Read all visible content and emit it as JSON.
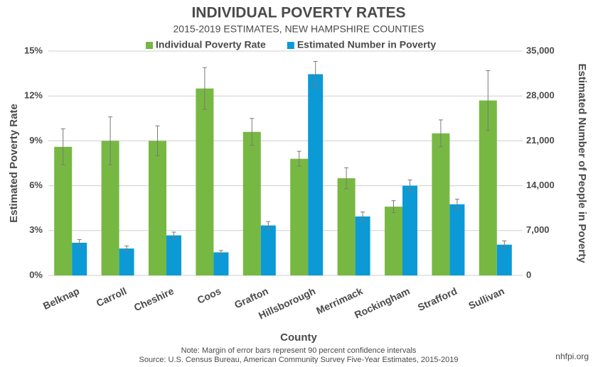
{
  "chart_data": {
    "type": "bar",
    "title": "INDIVIDUAL POVERTY RATES",
    "subtitle": "2015-2019 ESTIMATES, NEW HAMPSHIRE COUNTIES",
    "x_label": "County",
    "y_label": "Estimated Poverty Rate",
    "y2_label": "Estimated Number of People in Poverty",
    "note": "Note: Margin of error bars represent 90 percent confidence intervals",
    "source": "Source: U.S. Census Bureau, American Community Survey Five-Year Estimates, 2015-2019",
    "credit": "nhfpi.org",
    "categories": [
      "Belknap",
      "Carroll",
      "Cheshire",
      "Coos",
      "Grafton",
      "Hillsborough",
      "Merrimack",
      "Rockingham",
      "Strafford",
      "Sullivan"
    ],
    "series": [
      {
        "name": "Individual Poverty Rate",
        "color": "#77b843",
        "axis": "y",
        "values": [
          8.6,
          9.0,
          9.0,
          12.5,
          9.6,
          7.8,
          6.5,
          4.6,
          9.5,
          11.7
        ],
        "errors": [
          1.2,
          1.6,
          1.0,
          1.4,
          0.9,
          0.5,
          0.7,
          0.4,
          0.9,
          2.0
        ]
      },
      {
        "name": "Estimated Number in Poverty",
        "color": "#0b9ad6",
        "axis": "y2",
        "values": [
          5100,
          4200,
          6250,
          3600,
          7800,
          31400,
          9200,
          14000,
          11100,
          4800
        ],
        "errors": [
          500,
          400,
          500,
          300,
          600,
          2000,
          700,
          900,
          800,
          600
        ]
      }
    ],
    "ylim": [
      0,
      15
    ],
    "yticks": [
      {
        "value": 0,
        "label": "0%"
      },
      {
        "value": 3,
        "label": "3%"
      },
      {
        "value": 6,
        "label": "6%"
      },
      {
        "value": 9,
        "label": "9%"
      },
      {
        "value": 12,
        "label": "12%"
      },
      {
        "value": 15,
        "label": "15%"
      }
    ],
    "y2lim": [
      0,
      35000
    ],
    "y2ticks": [
      0,
      {
        "value": 7000,
        "label": "7,000"
      },
      {
        "value": 14000,
        "label": "14,000"
      },
      {
        "value": 21000,
        "label": "21,000"
      },
      {
        "value": 28000,
        "label": "28,000"
      },
      {
        "value": 35000,
        "label": "35,000"
      }
    ],
    "grid": true,
    "legend": "top"
  }
}
